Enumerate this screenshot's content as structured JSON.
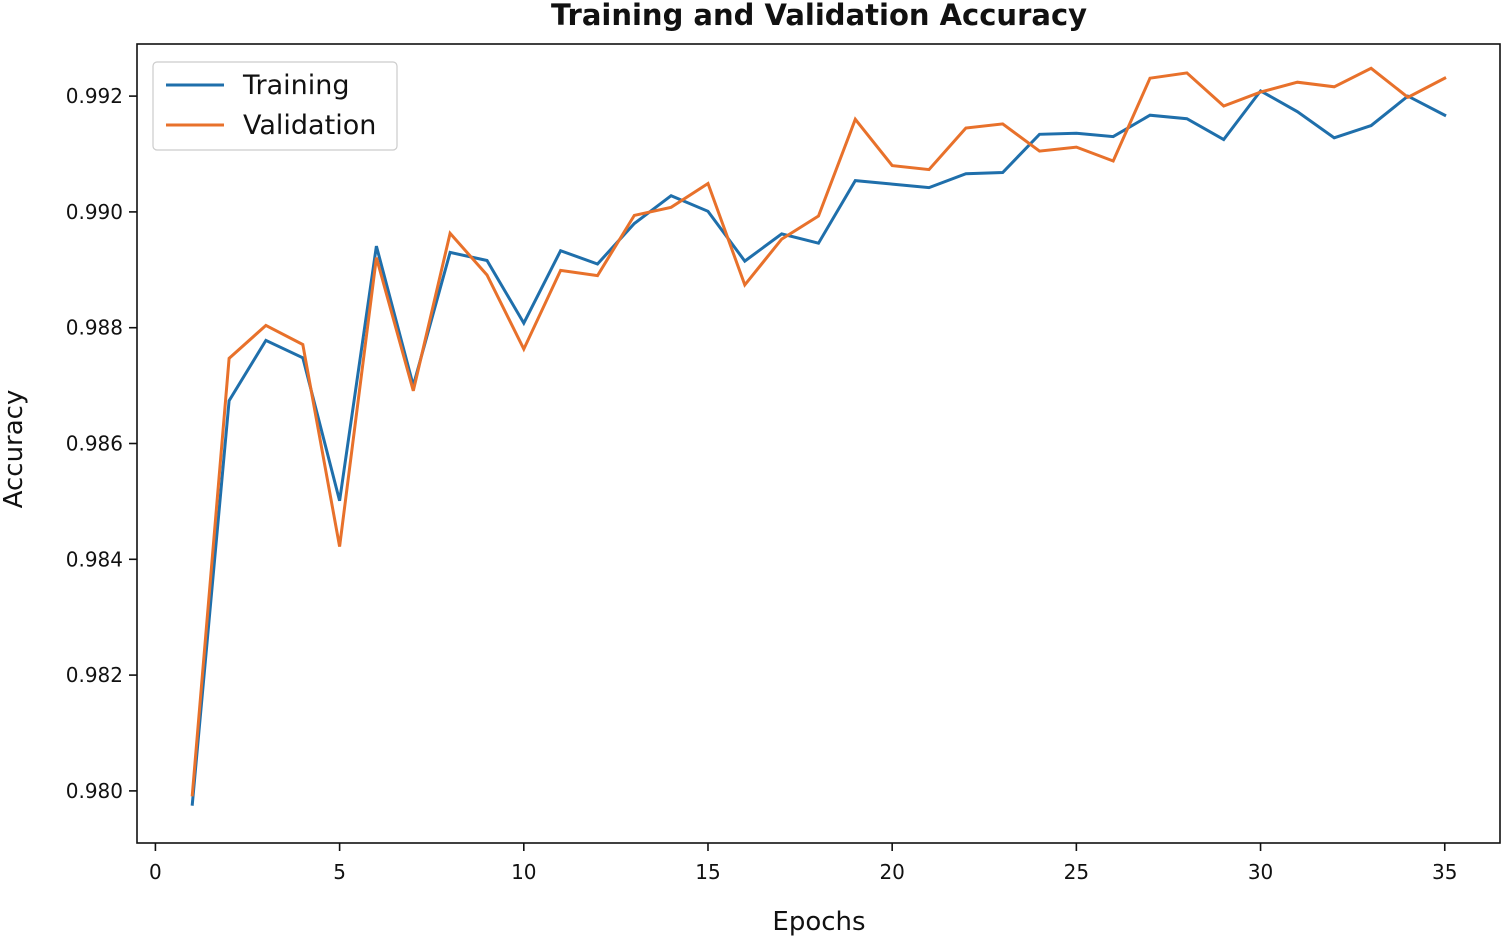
{
  "chart_data": {
    "type": "line",
    "title": "Training and Validation Accuracy",
    "xlabel": "Epochs",
    "ylabel": "Accuracy",
    "xlim": [
      -0.5,
      36.5
    ],
    "ylim": [
      0.9791,
      0.9929
    ],
    "xticks": [
      0,
      5,
      10,
      15,
      20,
      25,
      30,
      35
    ],
    "xtick_labels": [
      "0",
      "5",
      "10",
      "15",
      "20",
      "25",
      "30",
      "35"
    ],
    "yticks": [
      0.98,
      0.982,
      0.984,
      0.986,
      0.988,
      0.99,
      0.992
    ],
    "ytick_labels": [
      "0.980",
      "0.982",
      "0.984",
      "0.986",
      "0.988",
      "0.990",
      "0.992"
    ],
    "grid": false,
    "legend_position": "top-left",
    "x": [
      1,
      2,
      3,
      4,
      5,
      6,
      7,
      8,
      9,
      10,
      11,
      12,
      13,
      14,
      15,
      16,
      17,
      18,
      19,
      20,
      21,
      22,
      23,
      24,
      25,
      26,
      27,
      28,
      29,
      30,
      31,
      32,
      33,
      34,
      35
    ],
    "series": [
      {
        "name": "Training",
        "color": "#1f6fab",
        "values": [
          0.97977,
          0.98674,
          0.98778,
          0.98748,
          0.98501,
          0.98941,
          0.987,
          0.9893,
          0.98916,
          0.98808,
          0.98933,
          0.9891,
          0.9898,
          0.99028,
          0.99001,
          0.98915,
          0.98962,
          0.98946,
          0.99054,
          0.99048,
          0.99042,
          0.99066,
          0.99068,
          0.99134,
          0.99136,
          0.9913,
          0.99167,
          0.99161,
          0.99125,
          0.99209,
          0.99173,
          0.99128,
          0.99149,
          0.992,
          0.99167
        ]
      },
      {
        "name": "Validation",
        "color": "#e8712b",
        "values": [
          0.97993,
          0.98747,
          0.98804,
          0.98771,
          0.98422,
          0.98921,
          0.98691,
          0.98963,
          0.98891,
          0.98763,
          0.98899,
          0.9889,
          0.98994,
          0.99008,
          0.99049,
          0.98874,
          0.98953,
          0.98993,
          0.9916,
          0.9908,
          0.99073,
          0.99145,
          0.99152,
          0.99105,
          0.99112,
          0.99088,
          0.99231,
          0.9924,
          0.99183,
          0.99207,
          0.99224,
          0.99216,
          0.99248,
          0.99198,
          0.99231
        ]
      }
    ]
  }
}
